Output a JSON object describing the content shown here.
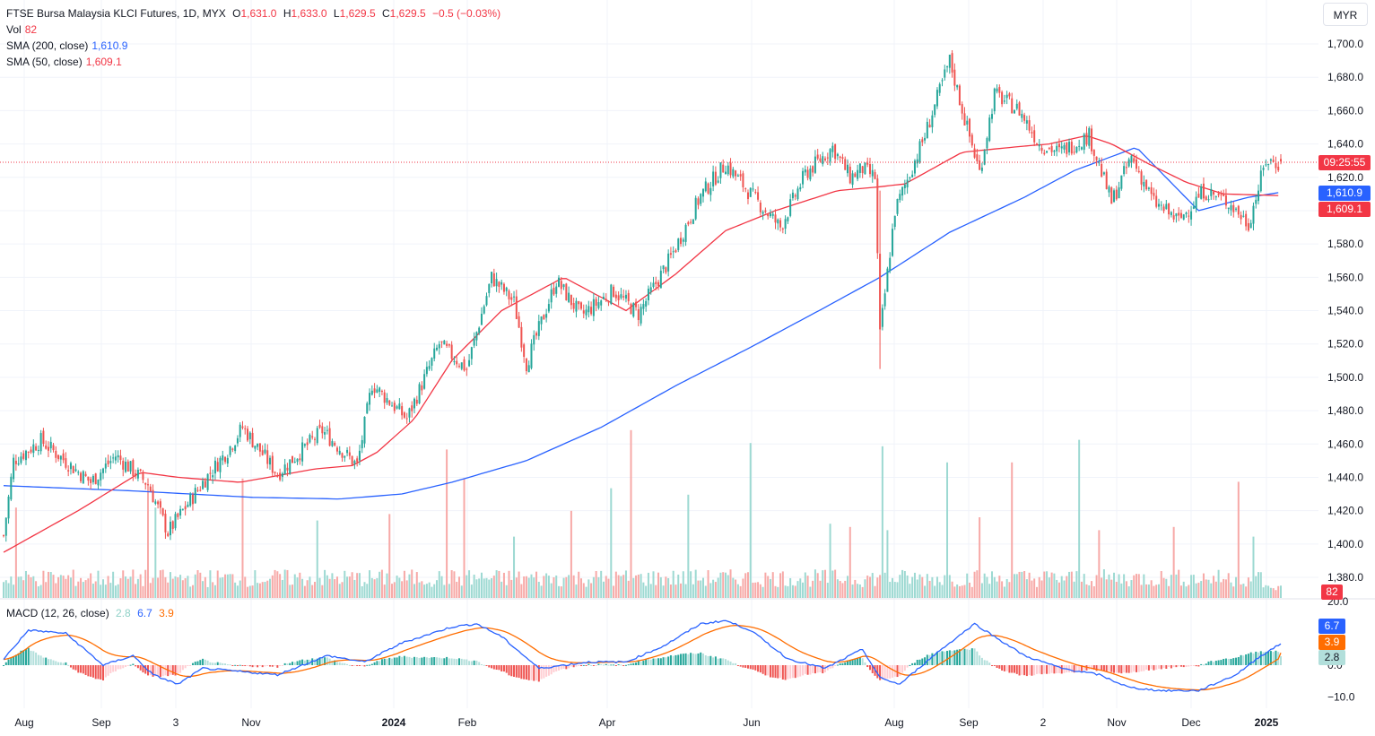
{
  "header": {
    "symbol": "FTSE Bursa Malaysia KLCI Futures, 1D, MYX",
    "o_label": "O",
    "o_value": "1,631.0",
    "h_label": "H",
    "h_value": "1,633.0",
    "l_label": "L",
    "l_value": "1,629.5",
    "c_label": "C",
    "c_value": "1,629.5",
    "change": "−0.5 (−0.03%)",
    "currency": "MYR"
  },
  "indicators": {
    "vol_label": "Vol",
    "vol_value": "82",
    "sma200_label": "SMA (200, close)",
    "sma200_value": "1,610.9",
    "sma50_label": "SMA (50, close)",
    "sma50_value": "1,609.1",
    "macd_label": "MACD (12, 26, close)",
    "macd_hist": "2.8",
    "macd_line": "6.7",
    "macd_signal": "3.9"
  },
  "price_tags": {
    "time": "09:25:55",
    "sma200": "1,610.9",
    "sma50": "1,609.1",
    "vol": "82",
    "macd_line": "6.7",
    "macd_signal": "3.9",
    "macd_hist": "2.8"
  },
  "colors": {
    "up": "#26a69a",
    "down": "#ef5350",
    "up_vol": "#9dd9d2",
    "down_vol": "#f7a9a7",
    "sma200": "#2962ff",
    "sma50": "#f23645",
    "macd": "#2962ff",
    "signal": "#ff6d00",
    "grid": "#f0f3fa"
  },
  "chart_data": {
    "type": "candlestick",
    "price_axis": {
      "ticks": [
        "1,380.0",
        "1,400.0",
        "1,420.0",
        "1,440.0",
        "1,460.0",
        "1,480.0",
        "1,500.0",
        "1,520.0",
        "1,540.0",
        "1,560.0",
        "1,580.0",
        "1,600.0",
        "1,620.0",
        "1,640.0",
        "1,660.0",
        "1,680.0",
        "1,700.0"
      ],
      "range": [
        1365,
        1712
      ]
    },
    "macd_axis": {
      "ticks": [
        "20.0",
        "0.0",
        "−10.0"
      ],
      "range": [
        -13,
        21
      ]
    },
    "time_axis": [
      "Aug",
      "Sep",
      "3",
      "Nov",
      "2024",
      "Feb",
      "Apr",
      "Jun",
      "Aug",
      "Sep",
      "2",
      "Nov",
      "Dec",
      "2025"
    ],
    "key_points": [
      [
        0,
        1405
      ],
      [
        4,
        1450
      ],
      [
        15,
        1462
      ],
      [
        35,
        1437
      ],
      [
        45,
        1453
      ],
      [
        58,
        1436
      ],
      [
        66,
        1407
      ],
      [
        80,
        1437
      ],
      [
        90,
        1456
      ],
      [
        96,
        1470
      ],
      [
        110,
        1442
      ],
      [
        128,
        1468
      ],
      [
        142,
        1447
      ],
      [
        148,
        1496
      ],
      [
        162,
        1475
      ],
      [
        175,
        1520
      ],
      [
        186,
        1505
      ],
      [
        196,
        1560
      ],
      [
        205,
        1545
      ],
      [
        210,
        1508
      ],
      [
        222,
        1558
      ],
      [
        232,
        1537
      ],
      [
        245,
        1552
      ],
      [
        255,
        1538
      ],
      [
        268,
        1572
      ],
      [
        280,
        1609
      ],
      [
        290,
        1628
      ],
      [
        300,
        1610
      ],
      [
        312,
        1590
      ],
      [
        322,
        1622
      ],
      [
        333,
        1638
      ],
      [
        340,
        1620
      ],
      [
        345,
        1625
      ],
      [
        350,
        1620
      ],
      [
        352,
        1525
      ],
      [
        358,
        1600
      ],
      [
        370,
        1645
      ],
      [
        380,
        1690
      ],
      [
        386,
        1655
      ],
      [
        392,
        1623
      ],
      [
        398,
        1670
      ],
      [
        408,
        1660
      ],
      [
        416,
        1640
      ],
      [
        424,
        1635
      ],
      [
        436,
        1645
      ],
      [
        445,
        1605
      ],
      [
        453,
        1632
      ],
      [
        462,
        1605
      ],
      [
        472,
        1594
      ],
      [
        482,
        1612
      ],
      [
        492,
        1605
      ],
      [
        500,
        1592
      ],
      [
        507,
        1630
      ],
      [
        513,
        1628
      ]
    ],
    "macd_key_points": [
      [
        0,
        2
      ],
      [
        10,
        11
      ],
      [
        25,
        10
      ],
      [
        40,
        0
      ],
      [
        52,
        3
      ],
      [
        60,
        -3
      ],
      [
        70,
        -6
      ],
      [
        80,
        -1
      ],
      [
        95,
        -2
      ],
      [
        110,
        -3
      ],
      [
        130,
        3
      ],
      [
        145,
        1
      ],
      [
        160,
        7
      ],
      [
        180,
        12
      ],
      [
        190,
        13
      ],
      [
        200,
        9
      ],
      [
        215,
        -1
      ],
      [
        235,
        1
      ],
      [
        250,
        1
      ],
      [
        265,
        6
      ],
      [
        280,
        13
      ],
      [
        290,
        14
      ],
      [
        300,
        11
      ],
      [
        315,
        2
      ],
      [
        330,
        -1
      ],
      [
        345,
        5
      ],
      [
        352,
        -4
      ],
      [
        360,
        -6
      ],
      [
        375,
        4
      ],
      [
        390,
        13
      ],
      [
        400,
        8
      ],
      [
        410,
        3
      ],
      [
        425,
        -1
      ],
      [
        440,
        -3
      ],
      [
        452,
        -7
      ],
      [
        465,
        -8
      ],
      [
        480,
        -8
      ],
      [
        495,
        -3
      ],
      [
        505,
        3
      ],
      [
        513,
        6.7
      ]
    ],
    "volume_spikes": [
      [
        5,
        28
      ],
      [
        58,
        35
      ],
      [
        61,
        28
      ],
      [
        96,
        37
      ],
      [
        126,
        24
      ],
      [
        155,
        26
      ],
      [
        178,
        46
      ],
      [
        185,
        37
      ],
      [
        205,
        19
      ],
      [
        228,
        27
      ],
      [
        244,
        34
      ],
      [
        252,
        52
      ],
      [
        275,
        32
      ],
      [
        300,
        48
      ],
      [
        332,
        23
      ],
      [
        340,
        22
      ],
      [
        353,
        47
      ],
      [
        355,
        21
      ],
      [
        379,
        42
      ],
      [
        392,
        25
      ],
      [
        405,
        42
      ],
      [
        432,
        49
      ],
      [
        440,
        21
      ],
      [
        470,
        22
      ],
      [
        496,
        36
      ],
      [
        502,
        19
      ]
    ],
    "sma50_key_points": [
      [
        0,
        1395
      ],
      [
        30,
        1420
      ],
      [
        55,
        1443
      ],
      [
        70,
        1440
      ],
      [
        95,
        1437
      ],
      [
        125,
        1445
      ],
      [
        140,
        1447
      ],
      [
        150,
        1455
      ],
      [
        165,
        1475
      ],
      [
        180,
        1510
      ],
      [
        200,
        1540
      ],
      [
        225,
        1560
      ],
      [
        250,
        1540
      ],
      [
        270,
        1562
      ],
      [
        290,
        1588
      ],
      [
        310,
        1600
      ],
      [
        335,
        1612
      ],
      [
        350,
        1614
      ],
      [
        362,
        1616
      ],
      [
        385,
        1635
      ],
      [
        405,
        1638
      ],
      [
        420,
        1640
      ],
      [
        435,
        1645
      ],
      [
        445,
        1640
      ],
      [
        460,
        1628
      ],
      [
        475,
        1617
      ],
      [
        490,
        1610
      ],
      [
        513,
        1609
      ]
    ],
    "sma200_key_points": [
      [
        0,
        1435
      ],
      [
        50,
        1432
      ],
      [
        100,
        1428
      ],
      [
        135,
        1427
      ],
      [
        160,
        1430
      ],
      [
        180,
        1437
      ],
      [
        210,
        1450
      ],
      [
        240,
        1470
      ],
      [
        270,
        1495
      ],
      [
        300,
        1518
      ],
      [
        330,
        1542
      ],
      [
        352,
        1560
      ],
      [
        380,
        1587
      ],
      [
        410,
        1608
      ],
      [
        430,
        1624
      ],
      [
        455,
        1638
      ],
      [
        480,
        1600
      ],
      [
        500,
        1608
      ],
      [
        513,
        1611
      ]
    ]
  }
}
